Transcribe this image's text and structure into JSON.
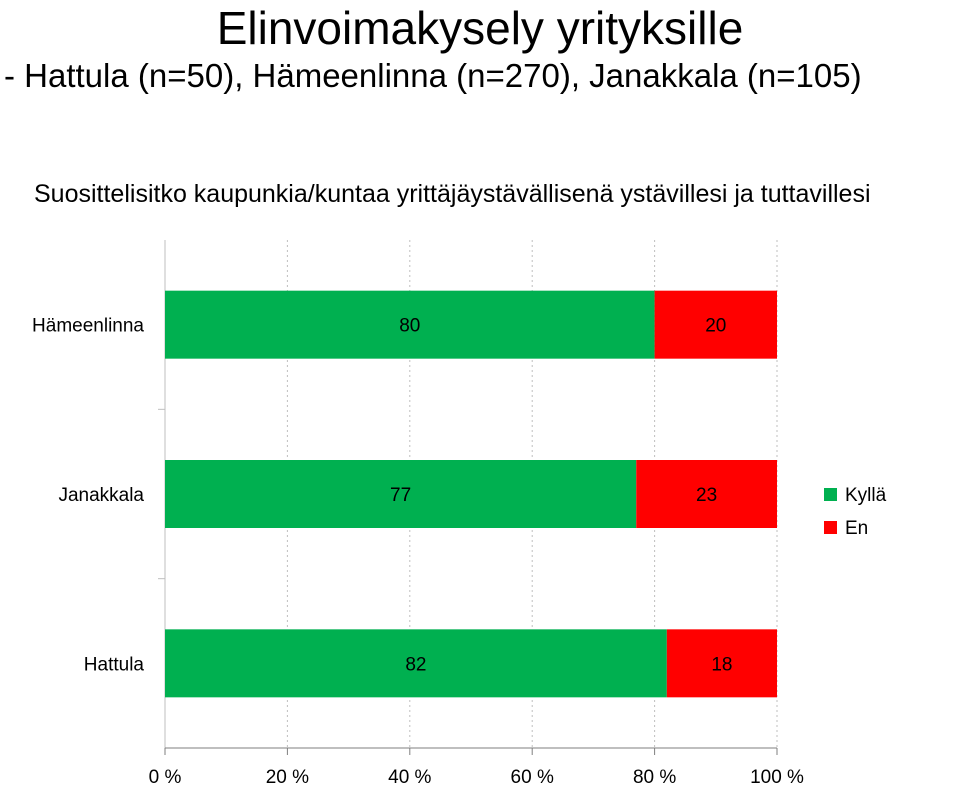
{
  "header": {
    "title": "Elinvoimakysely yrityksille",
    "subtitle": "- Hattula (n=50), Hämeenlinna (n=270), Janakkala (n=105)",
    "question": "Suosittelisitko kaupunkia/kuntaa  yrittäjäystävällisenä ystävillesi ja tuttavillesi"
  },
  "chart_data": {
    "type": "bar",
    "orientation": "horizontal",
    "stacked": true,
    "percent_scale": true,
    "categories": [
      "Hämeenlinna",
      "Janakkala",
      "Hattula"
    ],
    "series": [
      {
        "name": "Kyllä",
        "values": [
          80,
          77,
          82
        ],
        "color": "#00b050"
      },
      {
        "name": "En",
        "values": [
          20,
          23,
          18
        ],
        "color": "#ff0000"
      }
    ],
    "x_ticks": [
      "0 %",
      "20 %",
      "40 %",
      "60 %",
      "80 %",
      "100 %"
    ],
    "xlim": [
      0,
      100
    ],
    "grid": "vertical dashed",
    "legend_position": "right"
  }
}
